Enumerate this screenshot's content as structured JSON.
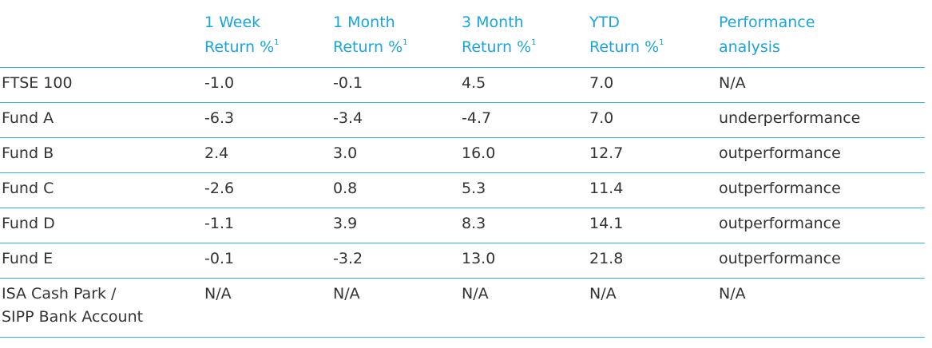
{
  "table": {
    "columns": [
      {
        "line1": "",
        "line2": "",
        "sup": ""
      },
      {
        "line1": "1 Week",
        "line2": "Return %",
        "sup": "1"
      },
      {
        "line1": "1 Month",
        "line2": "Return %",
        "sup": "1"
      },
      {
        "line1": "3 Month",
        "line2": "Return %",
        "sup": "1"
      },
      {
        "line1": "YTD",
        "line2": "Return %",
        "sup": "1"
      },
      {
        "line1": "Performance",
        "line2": "analysis",
        "sup": ""
      }
    ],
    "rows": [
      {
        "name": "FTSE 100",
        "w1": "-1.0",
        "m1": "-0.1",
        "m3": "4.5",
        "ytd": "7.0",
        "analysis": "N/A"
      },
      {
        "name": "Fund A",
        "w1": "-6.3",
        "m1": "-3.4",
        "m3": "-4.7",
        "ytd": "7.0",
        "analysis": "underperformance"
      },
      {
        "name": "Fund B",
        "w1": "2.4",
        "m1": "3.0",
        "m3": "16.0",
        "ytd": "12.7",
        "analysis": "outperformance"
      },
      {
        "name": "Fund C",
        "w1": "-2.6",
        "m1": "0.8",
        "m3": "5.3",
        "ytd": "11.4",
        "analysis": "outperformance"
      },
      {
        "name": "Fund D",
        "w1": "-1.1",
        "m1": "3.9",
        "m3": "8.3",
        "ytd": "14.1",
        "analysis": "outperformance"
      },
      {
        "name": "Fund E",
        "w1": "-0.1",
        "m1": "-3.2",
        "m3": "13.0",
        "ytd": "21.8",
        "analysis": "outperformance"
      }
    ],
    "last_row": {
      "name_line1": "ISA Cash Park /",
      "name_line2": "SIPP Bank Account",
      "w1": "N/A",
      "m1": "N/A",
      "m3": "N/A",
      "ytd": "N/A",
      "analysis": "N/A"
    }
  },
  "colors": {
    "header_text": "#1aa6dc",
    "rule": "#35b3df",
    "body_text": "#333333"
  }
}
